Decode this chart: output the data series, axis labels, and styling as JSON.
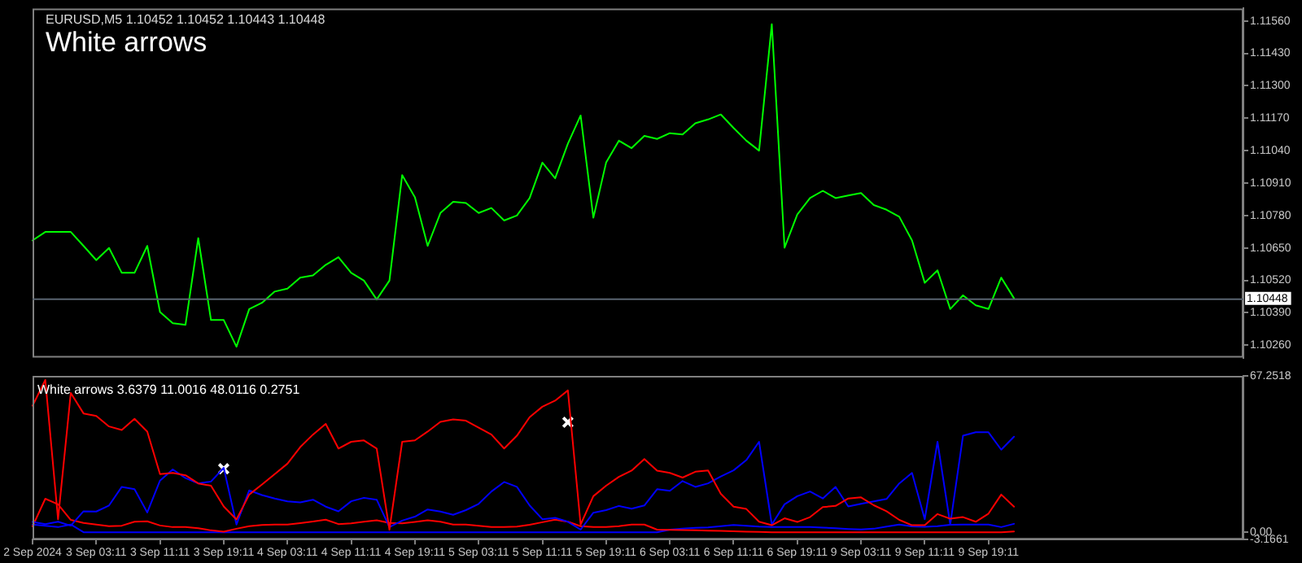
{
  "chart_data": [
    {
      "type": "line",
      "title": "White arrows",
      "annotations": [
        "EURUSD,M5 1.10452 1.10452 1.10443 1.10448"
      ],
      "categories": [
        null,
        null,
        null,
        null,
        null,
        null,
        null,
        null,
        null,
        null,
        null,
        null,
        null,
        null,
        null,
        null,
        null,
        null,
        null,
        null,
        null,
        null,
        null,
        null,
        null,
        null,
        null,
        null,
        null,
        null,
        null,
        null,
        null,
        null,
        null,
        null,
        null,
        null,
        null,
        null,
        null,
        null,
        null,
        null,
        null,
        null,
        null,
        null,
        null,
        null,
        null,
        null,
        null,
        null,
        null,
        null,
        null,
        null,
        null,
        null,
        null,
        null,
        null,
        null,
        null,
        null,
        null,
        null,
        null,
        null,
        null,
        null,
        null,
        null,
        null,
        null,
        null,
        null,
        null,
        null,
        null,
        null,
        null,
        null,
        null,
        null,
        null,
        null,
        null,
        null,
        null,
        null,
        null,
        null,
        null,
        null
      ],
      "ylim": [
        1.1021,
        1.1161
      ],
      "yticks": [
        {
          "value": 1.1156,
          "label": "1.11560"
        },
        {
          "value": 1.1143,
          "label": "1.11430"
        },
        {
          "value": 1.113,
          "label": "1.11300"
        },
        {
          "value": 1.1117,
          "label": "1.11170"
        },
        {
          "value": 1.1104,
          "label": "1.11040"
        },
        {
          "value": 1.1091,
          "label": "1.10910"
        },
        {
          "value": 1.1078,
          "label": "1.10780"
        },
        {
          "value": 1.1065,
          "label": "1.10650"
        },
        {
          "value": 1.1052,
          "label": "1.10520"
        },
        {
          "value": 1.1039,
          "label": "1.10390"
        },
        {
          "value": 1.1026,
          "label": "1.10260"
        }
      ],
      "tick_labels": "y",
      "grid": false,
      "legend": false,
      "marker": "none",
      "ref_lines": [
        {
          "axis": "y",
          "value": 1.10448,
          "label": "1.10448",
          "color": "#5a6470"
        }
      ],
      "series": [
        {
          "color": "#00ff00",
          "values": [
            1.1068,
            1.10714,
            1.10714,
            1.10714,
            1.10658,
            1.10601,
            1.1065,
            1.1055,
            1.1055,
            1.10658,
            1.10393,
            1.10348,
            1.10342,
            1.10689,
            1.10361,
            1.10361,
            1.10254,
            1.10405,
            1.1043,
            1.10475,
            1.10487,
            1.10531,
            1.1054,
            1.10582,
            1.10613,
            1.1055,
            1.10519,
            1.10443,
            1.10519,
            1.10942,
            1.10853,
            1.10658,
            1.1079,
            1.10835,
            1.1083,
            1.1079,
            1.1081,
            1.1076,
            1.1078,
            1.1085,
            1.10992,
            1.10929,
            1.11068,
            1.11181,
            1.10771,
            1.10992,
            1.1108,
            1.1105,
            1.11099,
            1.11087,
            1.1111,
            1.11105,
            1.1115,
            1.11165,
            1.11185,
            1.11131,
            1.1108,
            1.1104,
            1.11547,
            1.10651,
            1.10784,
            1.1085,
            1.10879,
            1.1085,
            1.1086,
            1.1087,
            1.10822,
            1.10803,
            1.10775,
            1.1068,
            1.1051,
            1.1056,
            1.10405,
            1.1046,
            1.1042,
            1.10405,
            1.10531,
            1.10448,
            null,
            null,
            null,
            null,
            null,
            null,
            null,
            null,
            null,
            null,
            null,
            null,
            null,
            null,
            null,
            null,
            null,
            null
          ]
        }
      ]
    },
    {
      "type": "line",
      "title": "White arrows 3.6379 11.0016 48.0116 0.2751",
      "categories": [
        "2 Sep 2024",
        null,
        null,
        null,
        null,
        "3 Sep 03:11",
        null,
        null,
        null,
        null,
        "3 Sep 11:11",
        null,
        null,
        null,
        null,
        "3 Sep 19:11",
        null,
        null,
        null,
        null,
        "4 Sep 03:11",
        null,
        null,
        null,
        null,
        "4 Sep 11:11",
        null,
        null,
        null,
        null,
        "4 Sep 19:11",
        null,
        null,
        null,
        null,
        "5 Sep 03:11",
        null,
        null,
        null,
        null,
        "5 Sep 11:11",
        null,
        null,
        null,
        null,
        "5 Sep 19:11",
        null,
        null,
        null,
        null,
        "6 Sep 03:11",
        null,
        null,
        null,
        null,
        "6 Sep 11:11",
        null,
        null,
        null,
        null,
        "6 Sep 19:11",
        null,
        null,
        null,
        null,
        "9 Sep 03:11",
        null,
        null,
        null,
        null,
        "9 Sep 11:11",
        null,
        null,
        null,
        null,
        "9 Sep 19:11",
        null,
        null,
        null,
        null,
        null,
        null,
        null,
        null,
        null,
        null,
        null,
        null,
        null,
        null,
        null,
        null,
        null,
        null,
        null,
        null
      ],
      "ylim": [
        -3.1661,
        67.2518
      ],
      "yticks": [
        67.2518,
        {
          "value": 0,
          "label": "0.00"
        },
        -3.1661
      ],
      "grid": false,
      "legend": false,
      "marker": "none",
      "series": [
        {
          "color": "#ff0000",
          "values": [
            54.4,
            65.5,
            5.6,
            59.9,
            51.1,
            50.0,
            45.5,
            44.0,
            48.8,
            43.3,
            25.0,
            25.5,
            24.5,
            21.0,
            20.0,
            11.1,
            5.5,
            16.2,
            20.5,
            25.0,
            29.5,
            36.6,
            42.0,
            46.6,
            36.0,
            38.9,
            39.5,
            36.0,
            1.1,
            38.9,
            39.5,
            43.3,
            47.5,
            48.5,
            48.0,
            45.0,
            42.0,
            36.0,
            41.5,
            49.5,
            54.0,
            56.6,
            61.0,
            3.3,
            15.5,
            20.0,
            23.8,
            26.5,
            31.5,
            26.5,
            25.5,
            23.5,
            26.0,
            26.6,
            16.5,
            11.0,
            10.0,
            4.5,
            3.0,
            6.0,
            4.4,
            6.5,
            10.8,
            11.3,
            14.5,
            15.0,
            11.6,
            9.0,
            5.3,
            3.0,
            3.0,
            7.8,
            5.8,
            6.5,
            4.5,
            8.0,
            16.2,
            11.0,
            null,
            null,
            null,
            null,
            null,
            null,
            null,
            null,
            null,
            null,
            null,
            null,
            null,
            null,
            null,
            null,
            null,
            null
          ]
        },
        {
          "color": "#0000ff",
          "values": [
            4.4,
            3.5,
            4.5,
            2.8,
            9.0,
            8.9,
            11.5,
            19.5,
            18.5,
            8.5,
            22.2,
            27.0,
            23.3,
            21.0,
            21.8,
            27.7,
            3.3,
            18.0,
            16.0,
            14.5,
            13.3,
            12.8,
            14.0,
            11.0,
            9.0,
            13.3,
            14.8,
            14.0,
            2.2,
            5.0,
            6.7,
            9.8,
            8.9,
            7.5,
            9.5,
            12.2,
            17.5,
            21.6,
            19.5,
            11.5,
            5.6,
            6.2,
            4.5,
            1.1,
            8.4,
            9.5,
            11.3,
            10.1,
            11.5,
            18.5,
            17.8,
            22.0,
            19.5,
            21.0,
            24.0,
            26.6,
            31.0,
            38.9,
            3.3,
            12.0,
            15.5,
            17.5,
            14.5,
            19.5,
            11.1,
            12.2,
            13.3,
            14.3,
            21.0,
            25.5,
            5.6,
            38.9,
            3.3,
            41.5,
            43.0,
            43.0,
            35.5,
            41.1,
            null,
            null,
            null,
            null,
            null,
            null,
            null,
            null,
            null,
            null,
            null,
            null,
            null,
            null,
            null,
            null,
            null,
            null
          ]
        },
        {
          "color": "#ff0000",
          "values": [
            2.5,
            14.4,
            12.0,
            5.3,
            4.0,
            3.3,
            2.6,
            2.8,
            4.5,
            4.7,
            2.9,
            2.2,
            2.2,
            1.7,
            0.8,
            0.2,
            1.5,
            2.6,
            3.1,
            3.3,
            3.3,
            3.9,
            4.6,
            5.4,
            3.5,
            3.8,
            4.5,
            5.1,
            4.0,
            3.8,
            4.4,
            5.1,
            4.5,
            3.3,
            3.3,
            2.8,
            2.2,
            2.2,
            2.4,
            3.2,
            4.3,
            5.4,
            4.5,
            2.6,
            2.2,
            2.2,
            2.6,
            3.3,
            3.3,
            1.1,
            1.0,
            0.9,
            0.8,
            0.7,
            0.6,
            0.4,
            0.2,
            0.1,
            0.0,
            0.0,
            0.0,
            0.0,
            0.0,
            0.0,
            0.0,
            0.0,
            0.0,
            0.0,
            0.0,
            0.0,
            0.0,
            0.0,
            0.0,
            0.0,
            0.0,
            0.0,
            0.0,
            0.3,
            null,
            null,
            null,
            null,
            null,
            null,
            null,
            null,
            null,
            null,
            null,
            null,
            null,
            null,
            null,
            null,
            null,
            null
          ]
        },
        {
          "color": "#0000ff",
          "values": [
            3.3,
            2.8,
            2.2,
            3.3,
            0.0,
            0.0,
            0.0,
            0.0,
            0.0,
            0.0,
            0.0,
            0.0,
            0.0,
            0.0,
            0.0,
            0.0,
            0.0,
            0.0,
            0.0,
            0.0,
            0.0,
            0.0,
            0.0,
            0.0,
            0.0,
            0.0,
            0.0,
            0.0,
            0.0,
            0.0,
            0.0,
            0.0,
            0.0,
            0.0,
            0.0,
            0.0,
            0.0,
            0.0,
            0.0,
            0.0,
            0.0,
            0.0,
            0.0,
            0.0,
            0.0,
            0.0,
            0.0,
            0.0,
            0.0,
            0.0,
            1.1,
            1.5,
            1.9,
            2.1,
            2.6,
            3.1,
            2.8,
            2.4,
            2.2,
            2.2,
            2.2,
            2.2,
            2.0,
            1.7,
            1.4,
            1.2,
            1.5,
            2.4,
            3.3,
            2.5,
            2.3,
            2.6,
            3.2,
            3.3,
            3.3,
            3.3,
            2.2,
            3.6,
            null,
            null,
            null,
            null,
            null,
            null,
            null,
            null,
            null,
            null,
            null,
            null,
            null,
            null,
            null,
            null,
            null,
            null
          ]
        },
        {
          "type": "scatter",
          "color": "#ffffff",
          "marker": "cross",
          "values": [
            null,
            null,
            null,
            null,
            null,
            null,
            null,
            null,
            null,
            null,
            null,
            null,
            null,
            null,
            null,
            27.3,
            null,
            null,
            null,
            null,
            null,
            null,
            null,
            null,
            null,
            null,
            null,
            null,
            null,
            null,
            null,
            null,
            null,
            null,
            null,
            null,
            null,
            null,
            null,
            null,
            null,
            null,
            47.3,
            null,
            null,
            null,
            null,
            null,
            null,
            null,
            null,
            null,
            null,
            null,
            null,
            null,
            null,
            null,
            null,
            null,
            null,
            null,
            null,
            null,
            null,
            null,
            null,
            null,
            null,
            null,
            null,
            null,
            null,
            null,
            null,
            null,
            null,
            null,
            null,
            null,
            null,
            null,
            null,
            null,
            null,
            null,
            null,
            null,
            null,
            null,
            null,
            null,
            null,
            null,
            null,
            null
          ]
        }
      ]
    }
  ]
}
